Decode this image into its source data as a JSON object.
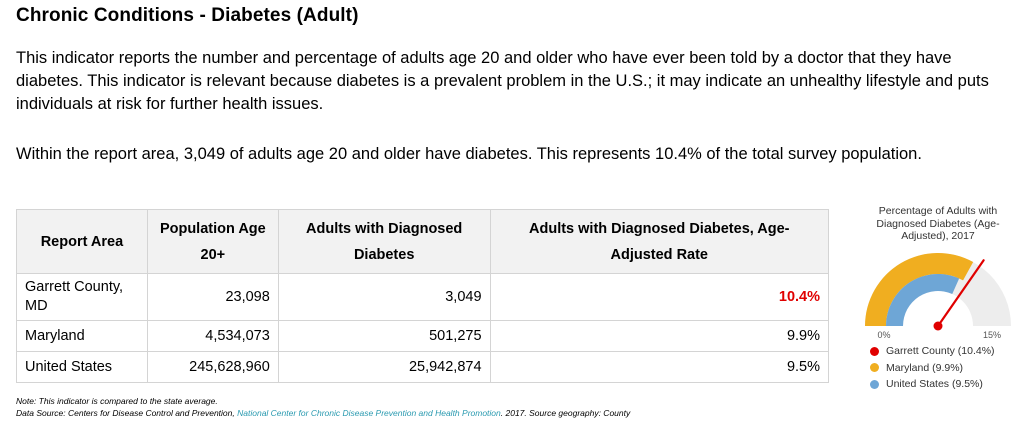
{
  "header": {
    "title": "Chronic Conditions - Diabetes (Adult)",
    "description": "This indicator reports the number and percentage of adults age 20 and older who have ever been told by a doctor that they have diabetes. This indicator is relevant because diabetes is a prevalent problem in the U.S.; it may indicate an unhealthy lifestyle and puts individuals at risk for further health issues.",
    "summary": "Within the report area, 3,049 of adults age 20 and older have diabetes. This represents 10.4% of the total survey population."
  },
  "table": {
    "columns": [
      "Report Area",
      "Population Age 20+",
      "Adults with Diagnosed Diabetes",
      "Adults with Diagnosed Diabetes, Age-Adjusted Rate"
    ],
    "rows": [
      {
        "area": "Garrett County, MD",
        "population": "23,098",
        "adults": "3,049",
        "rate": "10.4%"
      },
      {
        "area": "Maryland",
        "population": "4,534,073",
        "adults": "501,275",
        "rate": "9.9%"
      },
      {
        "area": "United States",
        "population": "245,628,960",
        "adults": "25,942,874",
        "rate": "9.5%"
      }
    ]
  },
  "note": {
    "line1": "Note: This indicator is compared to the state average.",
    "source_prefix": "Data Source: Centers for Disease Control and Prevention, ",
    "source_link": "National Center for Chronic Disease Prevention and Health Promotion",
    "source_suffix": ". 2017. Source geography: County"
  },
  "colors": {
    "garrett": "#e00000",
    "maryland": "#f0ae20",
    "united_states": "#6ea6d6",
    "track": "#ededed",
    "highlight": "#e00000"
  },
  "chart_data": {
    "type": "gauge",
    "title": "Percentage of Adults with Diagnosed Diabetes (Age-Adjusted), 2017",
    "min": 0,
    "max": 15,
    "min_label": "0%",
    "max_label": "15%",
    "series": [
      {
        "name": "Garrett County (10.4%)",
        "value": 10.4,
        "color": "#e00000"
      },
      {
        "name": "Maryland (9.9%)",
        "value": 9.9,
        "color": "#f0ae20"
      },
      {
        "name": "United States (9.5%)",
        "value": 9.5,
        "color": "#6ea6d6"
      }
    ]
  }
}
